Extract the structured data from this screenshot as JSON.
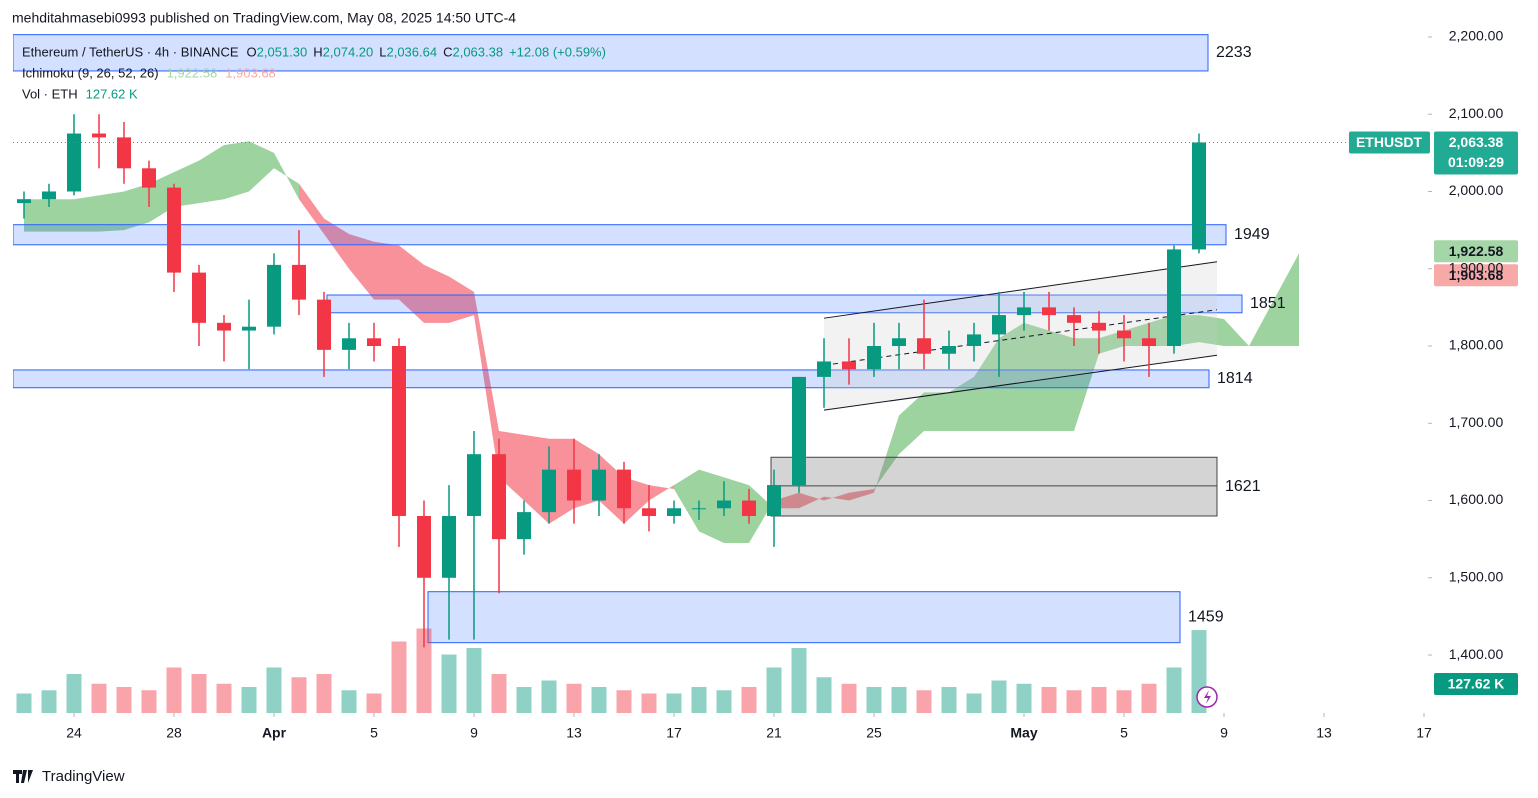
{
  "chart_data": {
    "type": "candlestick",
    "header": "mehditahmasebi0993 published on TradingView.com, May 08, 2025 14:50 UTC-4",
    "symbol": "Ethereum / TetherUS · 4h · BINANCE",
    "ohlc": [
      {
        "key": "O",
        "value": "2,051.30"
      },
      {
        "key": "H",
        "value": "2,074.20"
      },
      {
        "key": "L",
        "value": "2,036.64"
      },
      {
        "key": "C",
        "value": "2,063.38"
      }
    ],
    "change": "+12.08 (+0.59%)",
    "indicator": "Ichimoku (9, 26, 52, 26)",
    "indicator_values": [
      "1,922.58",
      "1,903.68"
    ],
    "volume_label": "Vol · ETH",
    "volume_value": "127.62 K",
    "up_color": "#089981",
    "down_color": "#f23645",
    "x": [
      -2,
      -1,
      0,
      1,
      2,
      3,
      4,
      5,
      6,
      7,
      8,
      9,
      10,
      11,
      12,
      13,
      14,
      15,
      16,
      17,
      18,
      19,
      20,
      21,
      22,
      23,
      24,
      25,
      26,
      27,
      28,
      29,
      30,
      31,
      32,
      33,
      34,
      35,
      36,
      37,
      38,
      39,
      40,
      41,
      42,
      43,
      44,
      45
    ],
    "open": [
      1985,
      1990,
      2000,
      2075,
      2070,
      2030,
      2005,
      1895,
      1830,
      1820,
      1825,
      1905,
      1860,
      1795,
      1810,
      1800,
      1580,
      1500,
      1580,
      1660,
      1550,
      1585,
      1640,
      1600,
      1640,
      1590,
      1580,
      1590,
      1590,
      1600,
      1580,
      1620,
      1760,
      1780,
      1770,
      1800,
      1810,
      1790,
      1800,
      1815,
      1840,
      1850,
      1840,
      1830,
      1820,
      1810,
      1800,
      1925
    ],
    "high": [
      2000,
      2010,
      2100,
      2100,
      2090,
      2040,
      2010,
      1905,
      1840,
      1860,
      1920,
      1950,
      1870,
      1830,
      1830,
      1810,
      1600,
      1620,
      1690,
      1680,
      1600,
      1670,
      1680,
      1660,
      1650,
      1620,
      1600,
      1600,
      1625,
      1615,
      1640,
      1760,
      1810,
      1810,
      1830,
      1830,
      1860,
      1820,
      1830,
      1870,
      1870,
      1870,
      1850,
      1845,
      1840,
      1830,
      1930,
      2075
    ],
    "low": [
      1965,
      1980,
      1995,
      2030,
      2010,
      1980,
      1870,
      1800,
      1780,
      1770,
      1815,
      1840,
      1760,
      1770,
      1780,
      1540,
      1410,
      1420,
      1420,
      1480,
      1530,
      1570,
      1570,
      1580,
      1570,
      1560,
      1570,
      1575,
      1580,
      1570,
      1540,
      1610,
      1720,
      1750,
      1760,
      1770,
      1770,
      1770,
      1780,
      1760,
      1820,
      1820,
      1800,
      1790,
      1780,
      1760,
      1790,
      1920
    ],
    "close": [
      1990,
      2000,
      2075,
      2070,
      2030,
      2005,
      1895,
      1830,
      1820,
      1825,
      1905,
      1860,
      1795,
      1810,
      1800,
      1580,
      1500,
      1580,
      1660,
      1550,
      1585,
      1640,
      1600,
      1640,
      1590,
      1580,
      1590,
      1590,
      1600,
      1580,
      1620,
      1760,
      1780,
      1770,
      1800,
      1810,
      1790,
      1800,
      1815,
      1840,
      1850,
      1840,
      1830,
      1820,
      1810,
      1800,
      1925,
      2063.38
    ],
    "volume": [
      30,
      35,
      60,
      45,
      40,
      35,
      70,
      60,
      45,
      40,
      70,
      55,
      60,
      35,
      30,
      110,
      130,
      90,
      100,
      60,
      40,
      50,
      45,
      40,
      35,
      30,
      30,
      40,
      35,
      40,
      70,
      100,
      55,
      45,
      40,
      40,
      35,
      40,
      30,
      50,
      45,
      40,
      35,
      40,
      35,
      45,
      70,
      127.62
    ],
    "xlim": [
      -2.44,
      54.16
    ],
    "ylim": [
      1325,
      2209
    ],
    "xticks": [
      {
        "value": 0,
        "label": "24"
      },
      {
        "value": 4,
        "label": "28"
      },
      {
        "value": 8,
        "label": "Apr"
      },
      {
        "value": 12,
        "label": "5"
      },
      {
        "value": 16,
        "label": "9"
      },
      {
        "value": 20,
        "label": "13"
      },
      {
        "value": 24,
        "label": "17"
      },
      {
        "value": 28,
        "label": "21"
      },
      {
        "value": 32,
        "label": "25"
      },
      {
        "value": 38,
        "label": "May"
      },
      {
        "value": 42,
        "label": "5"
      },
      {
        "value": 46,
        "label": "9"
      },
      {
        "value": 50,
        "label": "13"
      },
      {
        "value": 54,
        "label": "17"
      }
    ],
    "yticks": [
      {
        "value": 1400,
        "label": "1,400.00"
      },
      {
        "value": 1500,
        "label": "1,500.00"
      },
      {
        "value": 1600,
        "label": "1,600.00"
      },
      {
        "value": 1700,
        "label": "1,700.00"
      },
      {
        "value": 1800,
        "label": "1,800.00"
      },
      {
        "value": 1900,
        "label": "1,900.00"
      },
      {
        "value": 2000,
        "label": "2,000.00"
      },
      {
        "value": 2100,
        "label": "2,100.00"
      },
      {
        "value": 2200,
        "label": "2,200.00"
      }
    ],
    "ichimoku": {
      "x": [
        -2,
        -1,
        0,
        1,
        2,
        3,
        4,
        5,
        6,
        7,
        8,
        9,
        10,
        11,
        12,
        13,
        14,
        15,
        16,
        17,
        18,
        19,
        20,
        21,
        22,
        23,
        24,
        25,
        26,
        27,
        28,
        29,
        30,
        31,
        32,
        33,
        34,
        35,
        36,
        37,
        38,
        39,
        40,
        41,
        42,
        43,
        44,
        45,
        46,
        47,
        48,
        49
      ],
      "span_a": [
        1990,
        1990,
        1990,
        1995,
        2000,
        2010,
        2025,
        2040,
        2060,
        2065,
        2050,
        1990,
        1945,
        1900,
        1860,
        1860,
        1830,
        1830,
        1840,
        1630,
        1600,
        1570,
        1590,
        1600,
        1570,
        1600,
        1620,
        1640,
        1630,
        1620,
        1590,
        1590,
        1605,
        1600,
        1610,
        1710,
        1740,
        1740,
        1760,
        1810,
        1830,
        1820,
        1810,
        1810,
        1820,
        1830,
        1840,
        1840,
        1835,
        1800,
        1860,
        1920
      ],
      "span_b": [
        1948,
        1948,
        1948,
        1948,
        1950,
        1960,
        1980,
        1985,
        1990,
        2000,
        2030,
        2010,
        1965,
        1945,
        1935,
        1930,
        1905,
        1890,
        1870,
        1690,
        1685,
        1680,
        1680,
        1660,
        1630,
        1620,
        1615,
        1560,
        1545,
        1545,
        1600,
        1610,
        1600,
        1610,
        1615,
        1660,
        1690,
        1690,
        1690,
        1690,
        1690,
        1690,
        1690,
        1790,
        1800,
        1800,
        1800,
        1805,
        1800,
        1800,
        1800,
        1800
      ],
      "up_color": "#4caf50",
      "down_color": "#f23645"
    },
    "zones": [
      {
        "label": "2233",
        "top": 2203,
        "bottom": 2156,
        "x_start": -2.44,
        "x_end": 45.36,
        "kind": "blue"
      },
      {
        "label": "1949",
        "top": 1957,
        "bottom": 1931,
        "x_start": -2.44,
        "x_end": 46.08,
        "kind": "blue"
      },
      {
        "label": "1851",
        "top": 1866,
        "bottom": 1843,
        "x_start": 10.12,
        "x_end": 46.72,
        "kind": "blue"
      },
      {
        "label": "1814",
        "top": 1769,
        "bottom": 1746,
        "x_start": -2.44,
        "x_end": 45.4,
        "kind": "blue"
      },
      {
        "label": "1621",
        "top": 1656,
        "bottom": 1580,
        "x_start": 27.88,
        "x_end": 45.72,
        "kind": "gray",
        "mid": 1619
      },
      {
        "label": "1459",
        "top": 1482,
        "bottom": 1416,
        "x_start": 14.16,
        "x_end": 44.24,
        "kind": "blue"
      }
    ],
    "channel": {
      "x": [
        30,
        45.72
      ],
      "upper": [
        1836,
        1909
      ],
      "middle": [
        1775,
        1847
      ],
      "lower": [
        1717,
        1788
      ]
    },
    "last_price": {
      "value": 2063.38,
      "label": "2,063.38",
      "name": "ETHUSDT",
      "countdown": "01:09:29",
      "color": "#22ab94"
    },
    "price_tags": [
      {
        "value": 1922.58,
        "label": "1,922.58",
        "color": "#a5d6a7"
      },
      {
        "value": 1903.68,
        "label": "1,903.68",
        "color": "#f7a9a7"
      }
    ],
    "volume_tag": "127.62 K",
    "footer": "TradingView"
  }
}
